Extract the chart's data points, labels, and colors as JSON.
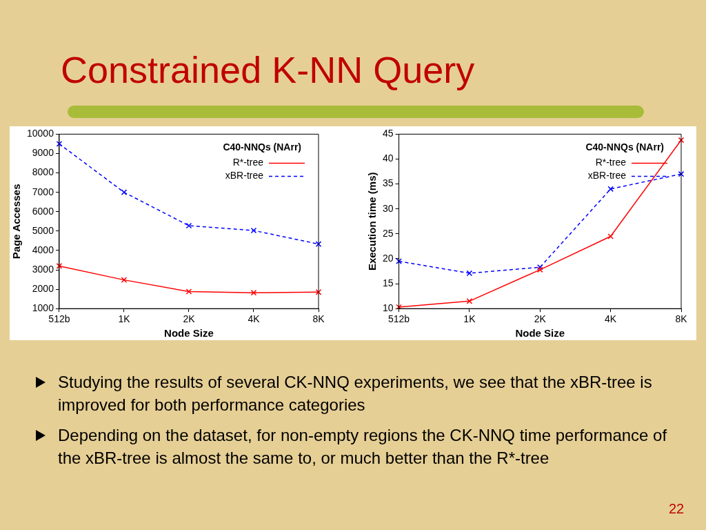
{
  "chart_data": [
    {
      "type": "other",
      "title": "Constrained K-NN Query",
      "annotations": [
        "Studying the results of several CK-NNQ experiments, we see that the xBR-tree is improved for both performance categories",
        "Depending on the dataset, for non-empty regions the CK-NNQ time performance of the xBR-tree is almost the same to, or much better than the R*-tree",
        "22"
      ]
    },
    {
      "type": "line",
      "legend_title": "C40-NNQs (NArr)",
      "xlabel": "Node Size",
      "ylabel": "Page Accesses",
      "categories": [
        "512b",
        "1K",
        "2K",
        "4K",
        "8K"
      ],
      "ylim": [
        1000,
        10000
      ],
      "yticks": [
        1000,
        2000,
        3000,
        4000,
        5000,
        6000,
        7000,
        8000,
        9000,
        10000
      ],
      "grid": false,
      "legend": "top right",
      "series": [
        {
          "name": "R*-tree",
          "color": "#ff0000",
          "values": [
            3200,
            2480,
            1880,
            1820,
            1850
          ],
          "marker": "cross",
          "line_style": "solid"
        },
        {
          "name": "xBR-tree",
          "color": "#0000ff",
          "values": [
            9500,
            7000,
            5280,
            5030,
            4330
          ],
          "marker": "cross",
          "line_style": "dashed"
        }
      ]
    },
    {
      "type": "line",
      "legend_title": "C40-NNQs (NArr)",
      "xlabel": "Node Size",
      "ylabel": "Execution time (ms)",
      "categories": [
        "512b",
        "1K",
        "2K",
        "4K",
        "8K"
      ],
      "ylim": [
        10,
        45
      ],
      "yticks": [
        10,
        15,
        20,
        25,
        30,
        35,
        40,
        45
      ],
      "grid": false,
      "legend": "top right",
      "series": [
        {
          "name": "R*-tree",
          "color": "#ff0000",
          "values": [
            10.3,
            11.5,
            17.8,
            24.5,
            43.8
          ],
          "marker": "cross",
          "line_style": "solid"
        },
        {
          "name": "xBR-tree",
          "color": "#0000ff",
          "values": [
            19.5,
            17.1,
            18.3,
            34,
            37
          ],
          "marker": "cross",
          "line_style": "dashed"
        }
      ]
    }
  ]
}
